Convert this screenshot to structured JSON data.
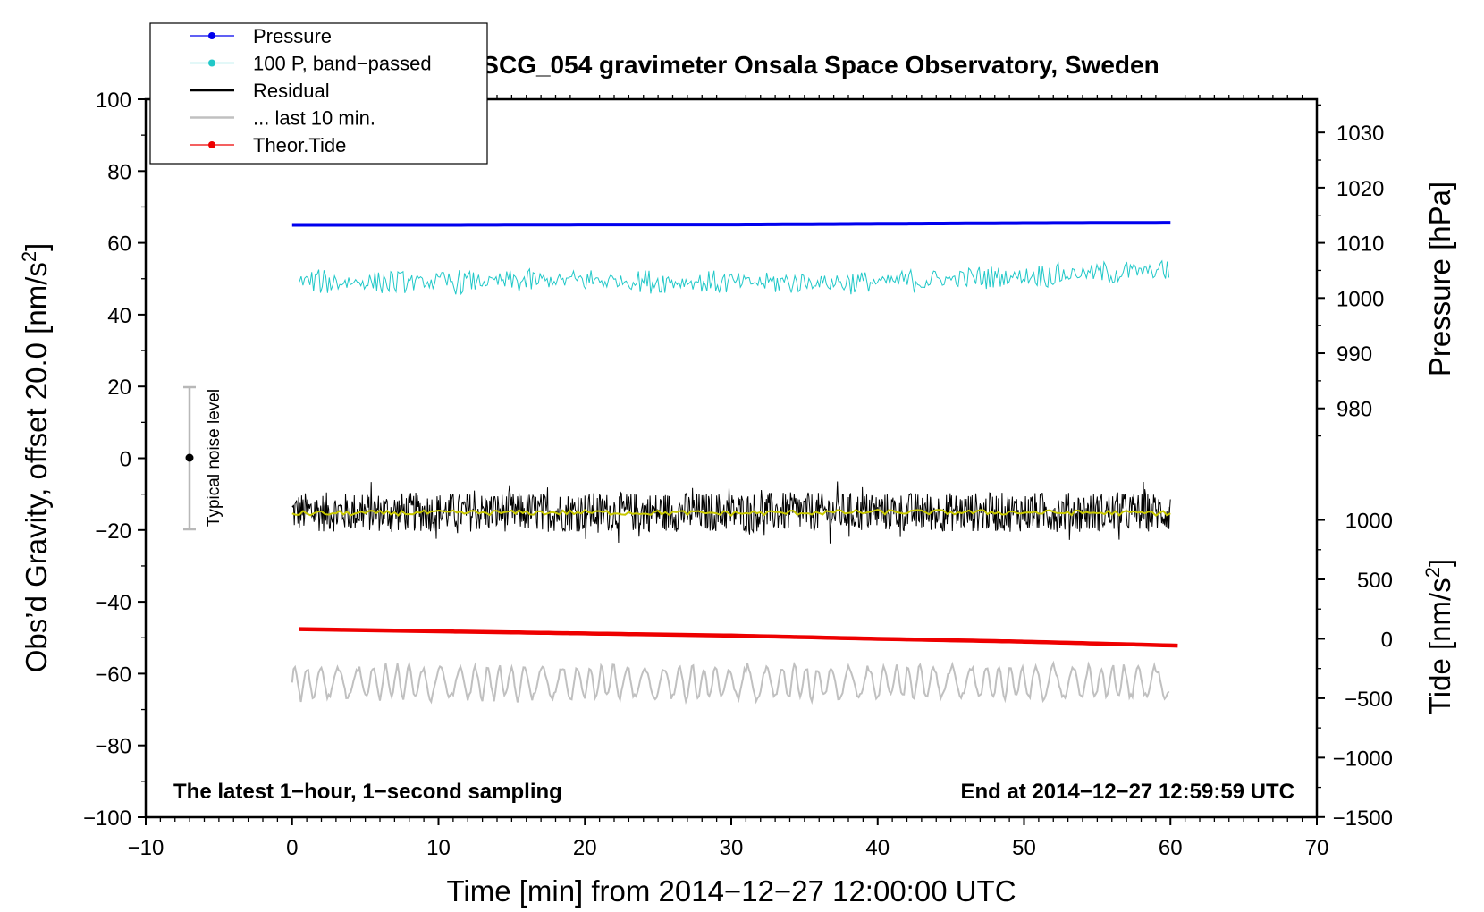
{
  "chart_data": {
    "type": "line",
    "title": "SCG_054 gravimeter Onsala Space Observatory, Sweden",
    "xlabel": "Time [min] from 2014−12−27 12:00:00 UTC",
    "ylabel_left_main": "Obs’d Gravity, offset 20.0 [nm/s",
    "ylabel_left_sup": "2",
    "ylabel_left_end": "]",
    "ylabel_right_pressure": "Pressure [hPa]",
    "ylabel_right_tide_main": "Tide [nm/s",
    "ylabel_right_tide_sup": "2",
    "ylabel_right_tide_end": "]",
    "xlim": [
      -10,
      70
    ],
    "ylim": [
      -100,
      100
    ],
    "pressure_axis_lim": [
      970,
      1035
    ],
    "tide_axis_lim": [
      -1500,
      1500
    ],
    "x_ticks": [
      -10,
      0,
      10,
      20,
      30,
      40,
      50,
      60,
      70
    ],
    "x_tick_labels": [
      "−10",
      "0",
      "10",
      "20",
      "30",
      "40",
      "50",
      "60",
      "70"
    ],
    "y_ticks": [
      -100,
      -80,
      -60,
      -40,
      -20,
      0,
      20,
      40,
      60,
      80,
      100
    ],
    "y_tick_labels": [
      "−100",
      "−80",
      "−60",
      "−40",
      "−20",
      "0",
      "20",
      "40",
      "60",
      "80",
      "100"
    ],
    "pressure_ticks": [
      980,
      990,
      1000,
      1010,
      1020,
      1030
    ],
    "pressure_tick_labels": [
      "980",
      "990",
      "1000",
      "1010",
      "1020",
      "1030"
    ],
    "tide_ticks": [
      -1500,
      -1000,
      -500,
      0,
      500,
      1000
    ],
    "tide_tick_labels": [
      "−1500",
      "−1000",
      "−500",
      "0",
      "500",
      "1000"
    ],
    "grid": false,
    "legend_position": "top-left",
    "annotations": {
      "bottom_left": "The latest 1−hour, 1−second sampling",
      "bottom_right": "End at 2014−12−27 12:59:59 UTC",
      "noise_label": "Typical noise level",
      "noise_bar": {
        "x": -7,
        "center": 0,
        "low": -20,
        "high": 20
      }
    },
    "series": [
      {
        "name": "Pressure",
        "color": "#0000ee",
        "style": "line-dot",
        "x": [
          0,
          10,
          20,
          30,
          40,
          50,
          60
        ],
        "y": [
          65.0,
          65.0,
          65.1,
          65.1,
          65.3,
          65.5,
          65.6
        ]
      },
      {
        "name": "100 P, band−passed",
        "color": "#20c8c8",
        "style": "line-dot",
        "center": 50,
        "amplitude": 3.5,
        "x": [
          0,
          10,
          20,
          30,
          40,
          50,
          60
        ],
        "y": [
          49.2,
          49.0,
          49.6,
          48.9,
          49.1,
          50.8,
          52.4
        ]
      },
      {
        "name": "Residual",
        "color": "#000000",
        "style": "line",
        "center": -15,
        "amplitude": 5.5,
        "x": [
          0,
          10,
          20,
          30,
          40,
          50,
          60
        ],
        "y": [
          -15,
          -15,
          -15,
          -15,
          -15,
          -15,
          -15
        ]
      },
      {
        "name": "... last 10 min.",
        "color": "#c0c0c0",
        "style": "line",
        "center": -62.5,
        "amplitude": 5,
        "x": [
          0,
          10,
          20,
          30,
          40,
          50,
          60
        ],
        "y": [
          -62.5,
          -62.5,
          -62.5,
          -62.5,
          -62.5,
          -62.5,
          -62.5
        ]
      },
      {
        "name": "Theor.Tide",
        "color": "#ee0000",
        "style": "line-dot",
        "x": [
          0.5,
          10,
          20,
          30,
          40,
          50,
          60.5
        ],
        "y": [
          -47.6,
          -48.2,
          -48.8,
          -49.4,
          -50.3,
          -51.1,
          -52.2
        ]
      },
      {
        "name": "",
        "color": "#c8c800",
        "style": "line",
        "center": -15,
        "x": [
          0,
          10,
          20,
          30,
          40,
          50,
          60
        ],
        "y": [
          -15.4,
          -15.2,
          -15.1,
          -15.3,
          -15.0,
          -15.1,
          -15.3
        ]
      }
    ]
  }
}
